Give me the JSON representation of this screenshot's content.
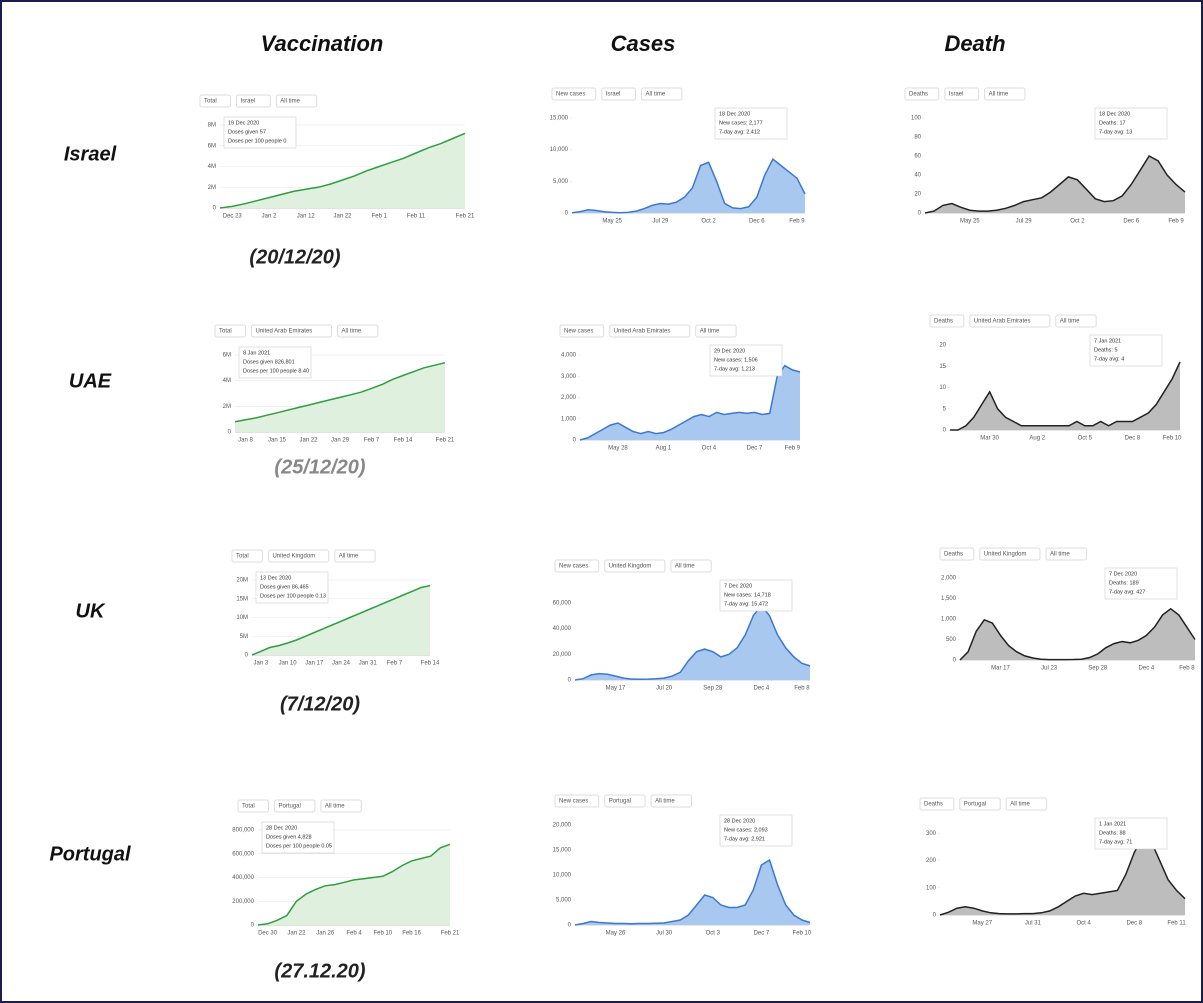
{
  "grid": {
    "columns": [
      "Vaccination",
      "Cases",
      "Death"
    ],
    "rows": [
      {
        "country": "Israel",
        "date": "(20/12/20)"
      },
      {
        "country": "UAE",
        "date": "(25/12/20)"
      },
      {
        "country": "UK",
        "date": "(7/12/20)"
      },
      {
        "country": "Portugal",
        "date": "(27.12.20)"
      }
    ]
  },
  "chart_data": [
    {
      "type": "area",
      "controls": [
        "Total",
        "Israel",
        "All time"
      ],
      "tooltip": [
        "19 Dec 2020",
        "Doses given 57",
        "Doses per 100 people 0"
      ],
      "color": "#2e9e3e",
      "fill": "#dff0df",
      "grid": true,
      "categories": [
        null,
        "Dec 23",
        null,
        null,
        "Jan 2",
        null,
        null,
        "Jan 12",
        null,
        null,
        "Jan 22",
        null,
        null,
        "Feb 1",
        null,
        null,
        "Feb 11",
        null,
        null,
        null,
        "Feb 21"
      ],
      "values": [
        0,
        150000,
        400000,
        700000,
        1000000,
        1300000,
        1600000,
        1800000,
        2000000,
        2300000,
        2700000,
        3100000,
        3600000,
        4000000,
        4400000,
        4800000,
        5300000,
        5800000,
        6200000,
        6700000,
        7200000
      ],
      "ylim": [
        0,
        8000000
      ],
      "yticks": [
        0,
        {
          "value": 2000000,
          "label": "2M"
        },
        {
          "value": 4000000,
          "label": "4M"
        },
        {
          "value": 6000000,
          "label": "6M"
        },
        {
          "value": 8000000,
          "label": "8M"
        }
      ]
    },
    {
      "type": "area",
      "controls": [
        "New cases",
        "Israel",
        "All time"
      ],
      "tooltip": [
        "18 Dec 2020",
        "New cases: 2,177",
        "7-day avg: 2,412"
      ],
      "color": "#3b78d0",
      "fill": "#a9c8f0",
      "grid": false,
      "categories": [
        null,
        null,
        null,
        null,
        null,
        "May 25",
        null,
        null,
        null,
        null,
        null,
        "Jul 29",
        null,
        null,
        null,
        null,
        null,
        "Oct 2",
        null,
        null,
        null,
        null,
        null,
        "Dec 6",
        null,
        null,
        null,
        null,
        "Feb 9",
        null
      ],
      "values": [
        50,
        200,
        500,
        400,
        200,
        100,
        50,
        100,
        300,
        700,
        1200,
        1500,
        1400,
        1700,
        2500,
        4000,
        7500,
        8000,
        5000,
        1500,
        800,
        700,
        1000,
        2500,
        6000,
        8500,
        7500,
        6500,
        5500,
        3000
      ],
      "ylim": [
        0,
        15000
      ],
      "yticks": [
        0,
        {
          "value": 5000,
          "label": "5,000"
        },
        {
          "value": 10000,
          "label": "10,000"
        },
        {
          "value": 15000,
          "label": "15,000"
        }
      ]
    },
    {
      "type": "area",
      "controls": [
        "Deaths",
        "Israel",
        "All time"
      ],
      "tooltip": [
        "18 Dec 2020",
        "Deaths: 17",
        "7-day avg: 13"
      ],
      "color": "#222222",
      "fill": "#bdbdbd",
      "grid": false,
      "categories": [
        null,
        null,
        null,
        null,
        null,
        "May 25",
        null,
        null,
        null,
        null,
        null,
        "Jul 29",
        null,
        null,
        null,
        null,
        null,
        "Oct 2",
        null,
        null,
        null,
        null,
        null,
        "Dec 6",
        null,
        null,
        null,
        null,
        "Feb 9",
        null
      ],
      "values": [
        0,
        2,
        8,
        10,
        6,
        3,
        2,
        2,
        3,
        5,
        8,
        12,
        14,
        16,
        22,
        30,
        38,
        35,
        25,
        15,
        12,
        13,
        18,
        30,
        45,
        60,
        55,
        40,
        30,
        22
      ],
      "ylim": [
        0,
        100
      ],
      "yticks": [
        0,
        20,
        40,
        60,
        80,
        100
      ]
    },
    {
      "type": "area",
      "controls": [
        "Total",
        "United Arab Emirates",
        "All time"
      ],
      "tooltip": [
        "8 Jan 2021",
        "Doses given 826,801",
        "Doses per 100 people 8.40"
      ],
      "color": "#2e9e3e",
      "fill": "#dff0df",
      "grid": true,
      "categories": [
        null,
        "Jan 8",
        null,
        null,
        "Jan 15",
        null,
        null,
        "Jan 22",
        null,
        null,
        "Jan 29",
        null,
        null,
        "Feb 7",
        null,
        null,
        "Feb 14",
        null,
        null,
        null,
        "Feb 21"
      ],
      "values": [
        800000,
        950000,
        1100000,
        1300000,
        1500000,
        1700000,
        1900000,
        2100000,
        2300000,
        2500000,
        2700000,
        2900000,
        3100000,
        3400000,
        3700000,
        4100000,
        4400000,
        4700000,
        5000000,
        5200000,
        5400000
      ],
      "ylim": [
        0,
        6000000
      ],
      "yticks": [
        0,
        {
          "value": 2000000,
          "label": "2M"
        },
        {
          "value": 4000000,
          "label": "4M"
        },
        {
          "value": 6000000,
          "label": "6M"
        }
      ]
    },
    {
      "type": "area",
      "controls": [
        "New cases",
        "United Arab Emirates",
        "All time"
      ],
      "tooltip": [
        "29 Dec 2020",
        "New cases: 1,506",
        "7-day avg: 1,213"
      ],
      "color": "#3b78d0",
      "fill": "#a9c8f0",
      "grid": false,
      "categories": [
        null,
        null,
        null,
        null,
        null,
        "May 28",
        null,
        null,
        null,
        null,
        null,
        "Aug 1",
        null,
        null,
        null,
        null,
        null,
        "Oct 4",
        null,
        null,
        null,
        null,
        null,
        "Dec 7",
        null,
        null,
        null,
        null,
        "Feb 9",
        null
      ],
      "values": [
        0,
        100,
        300,
        500,
        700,
        800,
        600,
        400,
        300,
        400,
        300,
        350,
        500,
        700,
        900,
        1100,
        1200,
        1100,
        1300,
        1200,
        1250,
        1300,
        1250,
        1300,
        1200,
        1250,
        3000,
        3500,
        3300,
        3200
      ],
      "ylim": [
        0,
        4000
      ],
      "yticks": [
        0,
        {
          "value": 1000,
          "label": "1,000"
        },
        {
          "value": 2000,
          "label": "2,000"
        },
        {
          "value": 3000,
          "label": "3,000"
        },
        {
          "value": 4000,
          "label": "4,000"
        }
      ]
    },
    {
      "type": "area",
      "controls": [
        "Deaths",
        "United Arab Emirates",
        "All time"
      ],
      "tooltip": [
        "7 Jan 2021",
        "Deaths: 5",
        "7-day avg: 4"
      ],
      "color": "#222222",
      "fill": "#bdbdbd",
      "grid": false,
      "categories": [
        null,
        null,
        null,
        null,
        null,
        "Mar 30",
        null,
        null,
        null,
        null,
        null,
        "Aug 2",
        null,
        null,
        null,
        null,
        null,
        "Oct 5",
        null,
        null,
        null,
        null,
        null,
        "Dec 8",
        null,
        null,
        null,
        null,
        "Feb 10",
        null
      ],
      "values": [
        0,
        0,
        1,
        3,
        6,
        9,
        5,
        3,
        2,
        1,
        1,
        1,
        1,
        1,
        1,
        1,
        2,
        1,
        1,
        2,
        1,
        2,
        2,
        2,
        3,
        4,
        6,
        9,
        12,
        16
      ],
      "ylim": [
        0,
        20
      ],
      "yticks": [
        0,
        5,
        10,
        15,
        20
      ]
    },
    {
      "type": "area",
      "controls": [
        "Total",
        "United Kingdom",
        "All time"
      ],
      "tooltip": [
        "13 Dec 2020",
        "Doses given 86,465",
        "Doses per 100 people 0.13"
      ],
      "color": "#2e9e3e",
      "fill": "#dff0df",
      "grid": true,
      "categories": [
        null,
        "Jan 3",
        null,
        null,
        "Jan 10",
        null,
        null,
        "Jan 17",
        null,
        null,
        "Jan 24",
        null,
        null,
        "Jan 31",
        null,
        null,
        "Feb 7",
        null,
        null,
        null,
        "Feb 14"
      ],
      "values": [
        0,
        1000000,
        2000000,
        2500000,
        3200000,
        4000000,
        5000000,
        6000000,
        7000000,
        8000000,
        9000000,
        10000000,
        11000000,
        12000000,
        13000000,
        14000000,
        15000000,
        16000000,
        17000000,
        18000000,
        18500000
      ],
      "ylim": [
        0,
        20000000
      ],
      "yticks": [
        0,
        {
          "value": 5000000,
          "label": "5M"
        },
        {
          "value": 10000000,
          "label": "10M"
        },
        {
          "value": 15000000,
          "label": "15M"
        },
        {
          "value": 20000000,
          "label": "20M"
        }
      ]
    },
    {
      "type": "area",
      "controls": [
        "New cases",
        "United Kingdom",
        "All time"
      ],
      "tooltip": [
        "7 Dec 2020",
        "New cases: 14,718",
        "7-day avg: 15,472"
      ],
      "color": "#3b78d0",
      "fill": "#a9c8f0",
      "grid": false,
      "categories": [
        null,
        null,
        null,
        null,
        null,
        "May 17",
        null,
        null,
        null,
        null,
        null,
        "Jul 20",
        null,
        null,
        null,
        null,
        null,
        "Sep 28",
        null,
        null,
        null,
        null,
        null,
        "Dec 4",
        null,
        null,
        null,
        null,
        "Feb 8",
        null
      ],
      "values": [
        0,
        1000,
        4000,
        5000,
        4500,
        3000,
        1500,
        700,
        600,
        700,
        1000,
        1500,
        3000,
        6000,
        15000,
        22000,
        24000,
        22000,
        18000,
        20000,
        25000,
        35000,
        50000,
        58000,
        50000,
        35000,
        25000,
        18000,
        13000,
        11000
      ],
      "ylim": [
        0,
        70000
      ],
      "yticks": [
        0,
        {
          "value": 20000,
          "label": "20,000"
        },
        {
          "value": 40000,
          "label": "40,000"
        },
        {
          "value": 60000,
          "label": "60,000"
        }
      ]
    },
    {
      "type": "area",
      "controls": [
        "Deaths",
        "United Kingdom",
        "All time"
      ],
      "tooltip": [
        "7 Dec 2020",
        "Deaths: 189",
        "7-day avg: 427"
      ],
      "color": "#222222",
      "fill": "#bdbdbd",
      "grid": false,
      "categories": [
        null,
        null,
        null,
        null,
        null,
        "Mar 17",
        null,
        null,
        null,
        null,
        null,
        "Jul 23",
        null,
        null,
        null,
        null,
        null,
        "Sep 28",
        null,
        null,
        null,
        null,
        null,
        "Dec 4",
        null,
        null,
        null,
        null,
        "Feb 8",
        null
      ],
      "values": [
        0,
        200,
        700,
        980,
        900,
        600,
        350,
        200,
        100,
        50,
        20,
        10,
        10,
        10,
        12,
        20,
        60,
        150,
        300,
        400,
        450,
        420,
        480,
        600,
        800,
        1100,
        1250,
        1100,
        800,
        500
      ],
      "ylim": [
        0,
        2000
      ],
      "yticks": [
        0,
        500,
        {
          "value": 1000,
          "label": "1,000"
        },
        {
          "value": 1500,
          "label": "1,500"
        },
        {
          "value": 2000,
          "label": "2,000"
        }
      ]
    },
    {
      "type": "area",
      "controls": [
        "Total",
        "Portugal",
        "All time"
      ],
      "tooltip": [
        "28 Dec 2020",
        "Doses given 4,828",
        "Doses per 100 people 0.05"
      ],
      "color": "#2e9e3e",
      "fill": "#dff0df",
      "grid": true,
      "categories": [
        null,
        "Dec 30",
        null,
        null,
        "Jan 22",
        null,
        null,
        "Jan 26",
        null,
        null,
        "Feb 4",
        null,
        null,
        "Feb 10",
        null,
        null,
        "Feb 16",
        null,
        null,
        null,
        "Feb 21"
      ],
      "values": [
        0,
        10000,
        40000,
        80000,
        200000,
        260000,
        300000,
        330000,
        340000,
        360000,
        380000,
        390000,
        400000,
        410000,
        450000,
        500000,
        540000,
        560000,
        580000,
        650000,
        680000
      ],
      "ylim": [
        0,
        800000
      ],
      "yticks": [
        0,
        {
          "value": 200000,
          "label": "200,000"
        },
        {
          "value": 400000,
          "label": "400,000"
        },
        {
          "value": 600000,
          "label": "600,000"
        },
        {
          "value": 800000,
          "label": "800,000"
        }
      ]
    },
    {
      "type": "area",
      "controls": [
        "New cases",
        "Portugal",
        "All time"
      ],
      "tooltip": [
        "28 Dec 2020",
        "New cases: 2,093",
        "7-day avg: 2,921"
      ],
      "color": "#3b78d0",
      "fill": "#a9c8f0",
      "grid": false,
      "categories": [
        null,
        null,
        null,
        null,
        null,
        "May 26",
        null,
        null,
        null,
        null,
        null,
        "Jul 30",
        null,
        null,
        null,
        null,
        null,
        "Oct 3",
        null,
        null,
        null,
        null,
        null,
        "Dec 7",
        null,
        null,
        null,
        null,
        "Feb 10",
        null
      ],
      "values": [
        0,
        300,
        700,
        500,
        400,
        300,
        300,
        250,
        300,
        300,
        350,
        400,
        700,
        1000,
        2000,
        4000,
        6000,
        5500,
        4000,
        3500,
        3500,
        4000,
        7000,
        12000,
        13000,
        8000,
        4000,
        2000,
        1000,
        500
      ],
      "ylim": [
        0,
        20000
      ],
      "yticks": [
        0,
        {
          "value": 5000,
          "label": "5,000"
        },
        {
          "value": 10000,
          "label": "10,000"
        },
        {
          "value": 15000,
          "label": "15,000"
        },
        {
          "value": 20000,
          "label": "20,000"
        }
      ]
    },
    {
      "type": "area",
      "controls": [
        "Deaths",
        "Portugal",
        "All time"
      ],
      "tooltip": [
        "1 Jan 2021",
        "Deaths: 88",
        "7-day avg: 71"
      ],
      "color": "#222222",
      "fill": "#bdbdbd",
      "grid": false,
      "categories": [
        null,
        null,
        null,
        null,
        null,
        "May 27",
        null,
        null,
        null,
        null,
        null,
        "Jul 31",
        null,
        null,
        null,
        null,
        null,
        "Oct 4",
        null,
        null,
        null,
        null,
        null,
        "Dec 8",
        null,
        null,
        null,
        null,
        "Feb 11",
        null
      ],
      "values": [
        0,
        10,
        25,
        30,
        25,
        15,
        8,
        5,
        4,
        4,
        5,
        5,
        8,
        15,
        30,
        50,
        70,
        80,
        75,
        80,
        85,
        90,
        150,
        230,
        290,
        270,
        200,
        130,
        90,
        60
      ],
      "ylim": [
        0,
        320
      ],
      "yticks": [
        0,
        100,
        200,
        300
      ]
    }
  ]
}
